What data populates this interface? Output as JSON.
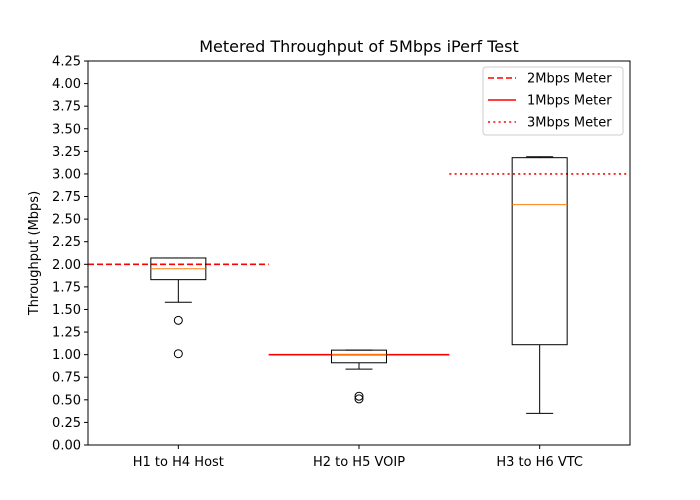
{
  "chart_data": {
    "type": "box",
    "title": "Metered Throughput of 5Mbps iPerf Test",
    "xlabel": "",
    "ylabel": "Throughput (Mbps)",
    "ylim": [
      0,
      4.25
    ],
    "yticks": [
      "0.00",
      "0.25",
      "0.50",
      "0.75",
      "1.00",
      "1.25",
      "1.50",
      "1.75",
      "2.00",
      "2.25",
      "2.50",
      "2.75",
      "3.00",
      "3.25",
      "3.50",
      "3.75",
      "4.00",
      "4.25"
    ],
    "categories": [
      "H1 to H4 Host",
      "H2 to H5 VOIP",
      "H3 to H6 VTC"
    ],
    "boxes": [
      {
        "whisker_low": 1.58,
        "q1": 1.83,
        "median": 1.95,
        "q3": 2.07,
        "whisker_high": 2.07,
        "outliers": [
          1.38,
          1.01
        ]
      },
      {
        "whisker_low": 0.84,
        "q1": 0.91,
        "median": 1.0,
        "q3": 1.05,
        "whisker_high": 1.05,
        "outliers": [
          0.54,
          0.51
        ]
      },
      {
        "whisker_low": 0.35,
        "q1": 1.11,
        "median": 2.66,
        "q3": 3.18,
        "whisker_high": 3.19,
        "outliers": []
      }
    ],
    "meters": [
      {
        "name": "2Mbps Meter",
        "value": 2.0,
        "category_index": 0,
        "style": "dashed",
        "color": "#ff0000"
      },
      {
        "name": "1Mbps Meter",
        "value": 1.0,
        "category_index": 1,
        "style": "solid",
        "color": "#ff0000"
      },
      {
        "name": "3Mbps Meter",
        "value": 3.0,
        "category_index": 2,
        "style": "dotted",
        "color": "#ff0000"
      }
    ],
    "legend": {
      "position": "top-right",
      "entries": [
        "2Mbps Meter",
        "1Mbps Meter",
        "3Mbps Meter"
      ]
    },
    "median_color": "#ff7f0e",
    "grid": false
  }
}
